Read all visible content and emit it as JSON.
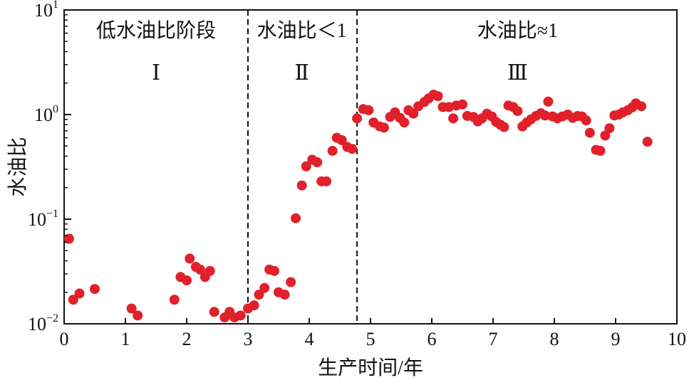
{
  "chart_data": {
    "type": "scatter",
    "xlabel": "生产时间/年",
    "ylabel": "水油比",
    "xlim": [
      0,
      10
    ],
    "ylim": [
      0.01,
      10
    ],
    "yscale": "log",
    "x_ticks": [
      "0",
      "1",
      "2",
      "3",
      "4",
      "5",
      "6",
      "7",
      "8",
      "9",
      "10"
    ],
    "y_ticks": [
      {
        "value": 10,
        "base": "10",
        "exp": "1"
      },
      {
        "value": 1,
        "base": "10",
        "exp": "0"
      },
      {
        "value": 0.1,
        "base": "10",
        "exp": "−1"
      },
      {
        "value": 0.01,
        "base": "10",
        "exp": "−2"
      }
    ],
    "grid": false,
    "marker_color": "#e0202a",
    "dividers": [
      3.0,
      4.78
    ],
    "regions": [
      {
        "label": "低水油比阶段",
        "roman": "Ⅰ",
        "x": 1.5
      },
      {
        "label": "水油比＜1",
        "roman": "Ⅱ",
        "x": 3.88
      },
      {
        "label": "水油比≈1",
        "roman": "Ⅲ",
        "x": 7.4
      }
    ],
    "series": [
      {
        "points": [
          [
            0.08,
            0.065
          ],
          [
            0.15,
            0.017
          ],
          [
            0.25,
            0.0195
          ],
          [
            0.5,
            0.0215
          ],
          [
            1.1,
            0.014
          ],
          [
            1.2,
            0.012
          ],
          [
            1.8,
            0.017
          ],
          [
            1.9,
            0.028
          ],
          [
            2.0,
            0.026
          ],
          [
            2.05,
            0.042
          ],
          [
            2.15,
            0.035
          ],
          [
            2.22,
            0.033
          ],
          [
            2.3,
            0.028
          ],
          [
            2.38,
            0.032
          ],
          [
            2.45,
            0.013
          ],
          [
            2.62,
            0.0115
          ],
          [
            2.7,
            0.013
          ],
          [
            2.78,
            0.0115
          ],
          [
            2.88,
            0.012
          ],
          [
            3.0,
            0.014
          ],
          [
            3.1,
            0.015
          ],
          [
            3.18,
            0.019
          ],
          [
            3.27,
            0.022
          ],
          [
            3.35,
            0.033
          ],
          [
            3.43,
            0.032
          ],
          [
            3.5,
            0.02
          ],
          [
            3.6,
            0.019
          ],
          [
            3.7,
            0.025
          ],
          [
            3.78,
            0.102
          ],
          [
            3.88,
            0.21
          ],
          [
            3.95,
            0.32
          ],
          [
            4.05,
            0.37
          ],
          [
            4.13,
            0.35
          ],
          [
            4.2,
            0.23
          ],
          [
            4.28,
            0.23
          ],
          [
            4.38,
            0.45
          ],
          [
            4.45,
            0.6
          ],
          [
            4.53,
            0.57
          ],
          [
            4.62,
            0.49
          ],
          [
            4.7,
            0.47
          ],
          [
            4.78,
            0.92
          ],
          [
            4.88,
            1.13
          ],
          [
            4.97,
            1.1
          ],
          [
            5.05,
            0.84
          ],
          [
            5.15,
            0.77
          ],
          [
            5.22,
            0.75
          ],
          [
            5.32,
            0.95
          ],
          [
            5.4,
            1.05
          ],
          [
            5.48,
            0.93
          ],
          [
            5.55,
            0.84
          ],
          [
            5.62,
            1.1
          ],
          [
            5.7,
            1.02
          ],
          [
            5.78,
            1.2
          ],
          [
            5.88,
            1.32
          ],
          [
            5.95,
            1.43
          ],
          [
            6.03,
            1.55
          ],
          [
            6.1,
            1.5
          ],
          [
            6.18,
            1.18
          ],
          [
            6.28,
            1.18
          ],
          [
            6.35,
            0.92
          ],
          [
            6.4,
            1.22
          ],
          [
            6.5,
            1.25
          ],
          [
            6.58,
            0.97
          ],
          [
            6.68,
            0.95
          ],
          [
            6.75,
            0.86
          ],
          [
            6.82,
            0.92
          ],
          [
            6.9,
            1.02
          ],
          [
            6.98,
            0.96
          ],
          [
            7.05,
            0.85
          ],
          [
            7.12,
            0.8
          ],
          [
            7.18,
            0.76
          ],
          [
            7.25,
            1.22
          ],
          [
            7.33,
            1.18
          ],
          [
            7.4,
            1.08
          ],
          [
            7.48,
            0.77
          ],
          [
            7.55,
            0.84
          ],
          [
            7.62,
            0.9
          ],
          [
            7.7,
            0.97
          ],
          [
            7.78,
            1.03
          ],
          [
            7.85,
            0.98
          ],
          [
            7.9,
            1.33
          ],
          [
            7.97,
            0.96
          ],
          [
            8.05,
            0.92
          ],
          [
            8.13,
            0.96
          ],
          [
            8.22,
            1.0
          ],
          [
            8.3,
            0.93
          ],
          [
            8.38,
            0.97
          ],
          [
            8.45,
            0.96
          ],
          [
            8.52,
            0.88
          ],
          [
            8.58,
            0.67
          ],
          [
            8.68,
            0.46
          ],
          [
            8.75,
            0.45
          ],
          [
            8.83,
            0.63
          ],
          [
            8.9,
            0.74
          ],
          [
            8.98,
            0.98
          ],
          [
            9.05,
            1.0
          ],
          [
            9.12,
            1.05
          ],
          [
            9.2,
            1.1
          ],
          [
            9.27,
            1.17
          ],
          [
            9.33,
            1.28
          ],
          [
            9.42,
            1.2
          ],
          [
            9.52,
            0.55
          ]
        ]
      }
    ]
  }
}
